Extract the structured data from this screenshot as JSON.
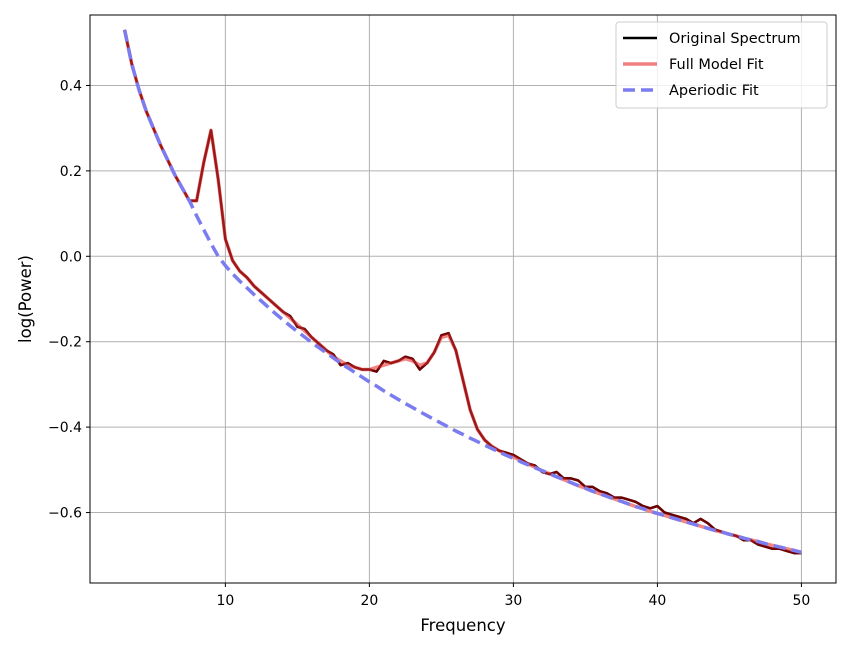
{
  "chart_data": {
    "type": "line",
    "title": "",
    "xlabel": "Frequency",
    "ylabel": "log(Power)",
    "xlim": [
      0.6,
      52.4
    ],
    "ylim": [
      -0.765,
      0.565
    ],
    "xticks": [
      10,
      20,
      30,
      40,
      50
    ],
    "xtick_labels": [
      "10",
      "20",
      "30",
      "40",
      "50"
    ],
    "yticks": [
      -0.6,
      -0.4,
      -0.2,
      0.0,
      0.2,
      0.4
    ],
    "ytick_labels": [
      "−0.6",
      "−0.4",
      "−0.2",
      "0.0",
      "0.2",
      "0.4"
    ],
    "grid": true,
    "legend_position": "top-right",
    "x": [
      3.0,
      3.5,
      4.0,
      4.5,
      5.0,
      5.5,
      6.0,
      6.5,
      7.0,
      7.5,
      8.0,
      8.5,
      9.0,
      9.5,
      10.0,
      10.5,
      11.0,
      11.5,
      12.0,
      12.5,
      13.0,
      13.5,
      14.0,
      14.5,
      15.0,
      15.5,
      16.0,
      16.5,
      17.0,
      17.5,
      18.0,
      18.5,
      19.0,
      19.5,
      20.0,
      20.5,
      21.0,
      21.5,
      22.0,
      22.5,
      23.0,
      23.5,
      24.0,
      24.5,
      25.0,
      25.5,
      26.0,
      26.5,
      27.0,
      27.5,
      28.0,
      28.5,
      29.0,
      29.5,
      30.0,
      30.5,
      31.0,
      31.5,
      32.0,
      32.5,
      33.0,
      33.5,
      34.0,
      34.5,
      35.0,
      35.5,
      36.0,
      36.5,
      37.0,
      37.5,
      38.0,
      38.5,
      39.0,
      39.5,
      40.0,
      40.5,
      41.0,
      41.5,
      42.0,
      42.5,
      43.0,
      43.5,
      44.0,
      44.5,
      45.0,
      45.5,
      46.0,
      46.5,
      47.0,
      47.5,
      48.0,
      48.5,
      49.0,
      49.5,
      50.0
    ],
    "series": [
      {
        "name": "Original Spectrum",
        "color": "#000000",
        "dash": "solid",
        "values": [
          0.53,
          0.45,
          0.39,
          0.34,
          0.3,
          0.26,
          0.225,
          0.19,
          0.16,
          0.13,
          0.13,
          0.22,
          0.295,
          0.18,
          0.04,
          -0.01,
          -0.035,
          -0.05,
          -0.07,
          -0.085,
          -0.1,
          -0.115,
          -0.13,
          -0.14,
          -0.165,
          -0.17,
          -0.19,
          -0.205,
          -0.22,
          -0.23,
          -0.255,
          -0.25,
          -0.26,
          -0.265,
          -0.265,
          -0.27,
          -0.245,
          -0.25,
          -0.245,
          -0.235,
          -0.24,
          -0.265,
          -0.25,
          -0.225,
          -0.185,
          -0.18,
          -0.22,
          -0.29,
          -0.36,
          -0.405,
          -0.43,
          -0.445,
          -0.455,
          -0.46,
          -0.465,
          -0.475,
          -0.485,
          -0.49,
          -0.505,
          -0.51,
          -0.505,
          -0.52,
          -0.52,
          -0.525,
          -0.54,
          -0.54,
          -0.55,
          -0.555,
          -0.565,
          -0.565,
          -0.57,
          -0.575,
          -0.585,
          -0.59,
          -0.585,
          -0.6,
          -0.605,
          -0.61,
          -0.615,
          -0.625,
          -0.615,
          -0.625,
          -0.64,
          -0.645,
          -0.65,
          -0.655,
          -0.665,
          -0.665,
          -0.675,
          -0.68,
          -0.685,
          -0.685,
          -0.69,
          -0.695,
          -0.695
        ]
      },
      {
        "name": "Full Model Fit",
        "color": "#f08080",
        "dash": "solid",
        "values": [
          0.53,
          0.45,
          0.39,
          0.34,
          0.3,
          0.26,
          0.225,
          0.19,
          0.16,
          0.13,
          0.13,
          0.22,
          0.295,
          0.18,
          0.04,
          -0.01,
          -0.035,
          -0.05,
          -0.07,
          -0.085,
          -0.1,
          -0.115,
          -0.13,
          -0.145,
          -0.16,
          -0.175,
          -0.19,
          -0.205,
          -0.22,
          -0.235,
          -0.245,
          -0.255,
          -0.26,
          -0.265,
          -0.265,
          -0.26,
          -0.255,
          -0.25,
          -0.245,
          -0.24,
          -0.245,
          -0.255,
          -0.25,
          -0.225,
          -0.19,
          -0.185,
          -0.22,
          -0.29,
          -0.36,
          -0.405,
          -0.43,
          -0.445,
          -0.455,
          -0.465,
          -0.47,
          -0.478,
          -0.486,
          -0.494,
          -0.502,
          -0.509,
          -0.516,
          -0.523,
          -0.53,
          -0.537,
          -0.543,
          -0.55,
          -0.556,
          -0.562,
          -0.568,
          -0.574,
          -0.58,
          -0.586,
          -0.591,
          -0.597,
          -0.602,
          -0.607,
          -0.612,
          -0.617,
          -0.622,
          -0.627,
          -0.632,
          -0.637,
          -0.642,
          -0.646,
          -0.651,
          -0.655,
          -0.66,
          -0.664,
          -0.668,
          -0.673,
          -0.677,
          -0.681,
          -0.685,
          -0.689,
          -0.693
        ]
      },
      {
        "name": "Aperiodic Fit",
        "color": "#7b7cf0",
        "dash": "dashed",
        "values": [
          0.53,
          0.45,
          0.39,
          0.34,
          0.3,
          0.26,
          0.225,
          0.19,
          0.16,
          0.13,
          0.095,
          0.062,
          0.03,
          0.0,
          -0.022,
          -0.041,
          -0.058,
          -0.074,
          -0.09,
          -0.105,
          -0.12,
          -0.135,
          -0.149,
          -0.163,
          -0.176,
          -0.189,
          -0.202,
          -0.214,
          -0.226,
          -0.238,
          -0.25,
          -0.261,
          -0.272,
          -0.283,
          -0.294,
          -0.304,
          -0.315,
          -0.325,
          -0.335,
          -0.345,
          -0.354,
          -0.364,
          -0.373,
          -0.382,
          -0.391,
          -0.4,
          -0.409,
          -0.417,
          -0.426,
          -0.434,
          -0.442,
          -0.45,
          -0.458,
          -0.466,
          -0.473,
          -0.481,
          -0.488,
          -0.495,
          -0.502,
          -0.509,
          -0.516,
          -0.523,
          -0.53,
          -0.537,
          -0.543,
          -0.55,
          -0.556,
          -0.562,
          -0.568,
          -0.574,
          -0.58,
          -0.586,
          -0.591,
          -0.597,
          -0.602,
          -0.607,
          -0.612,
          -0.617,
          -0.622,
          -0.627,
          -0.632,
          -0.637,
          -0.642,
          -0.646,
          -0.651,
          -0.655,
          -0.66,
          -0.664,
          -0.668,
          -0.673,
          -0.677,
          -0.681,
          -0.685,
          -0.689,
          -0.693
        ]
      }
    ],
    "overlay_color": "#8b0000"
  }
}
